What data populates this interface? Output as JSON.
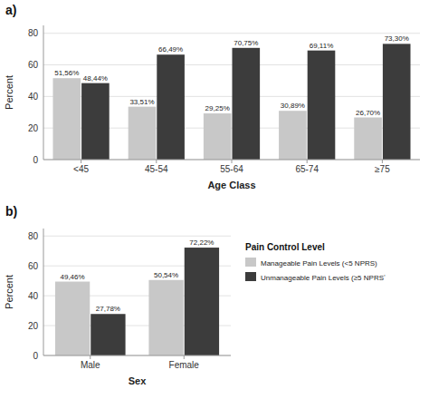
{
  "chart_data": [
    {
      "type": "bar",
      "title": "a)",
      "xlabel": "Age Class",
      "ylabel": "Percent",
      "categories": [
        "<45",
        "45-54",
        "55-64",
        "65-74",
        "≥75"
      ],
      "series": [
        {
          "name": "Manageable Pain Levels (<5 NPRS)",
          "color": "#c8c8c8",
          "values": [
            51.56,
            33.51,
            29.25,
            30.89,
            26.7
          ],
          "value_labels": [
            "51,56%",
            "33,51%",
            "29,25%",
            "30,89%",
            "26,70%"
          ]
        },
        {
          "name": "Unmanageable Pain Levels (≥5 NPRSʼ",
          "color": "#3c3c3c",
          "values": [
            48.44,
            66.49,
            70.75,
            69.11,
            73.3
          ],
          "value_labels": [
            "48,44%",
            "66,49%",
            "70,75%",
            "69,11%",
            "73,30%"
          ]
        }
      ],
      "ylim": [
        0,
        85
      ],
      "yticks": [
        0,
        20,
        40,
        60,
        80
      ],
      "grid": true,
      "data_labels": true
    },
    {
      "type": "bar",
      "title": "b)",
      "xlabel": "Sex",
      "ylabel": "Percent",
      "categories": [
        "Male",
        "Female"
      ],
      "series": [
        {
          "name": "Manageable Pain Levels (<5 NPRS)",
          "color": "#c8c8c8",
          "values": [
            49.46,
            50.54
          ],
          "value_labels": [
            "49,46%",
            "50,54%"
          ]
        },
        {
          "name": "Unmanageable Pain Levels (≥5 NPRSʼ",
          "color": "#3c3c3c",
          "values": [
            27.78,
            72.22
          ],
          "value_labels": [
            "27,78%",
            "72,22%"
          ]
        }
      ],
      "ylim": [
        0,
        85
      ],
      "yticks": [
        0,
        20,
        40,
        60,
        80
      ],
      "grid": true,
      "data_labels": true,
      "legend": "right",
      "legend_title": "Pain Control Level"
    }
  ]
}
